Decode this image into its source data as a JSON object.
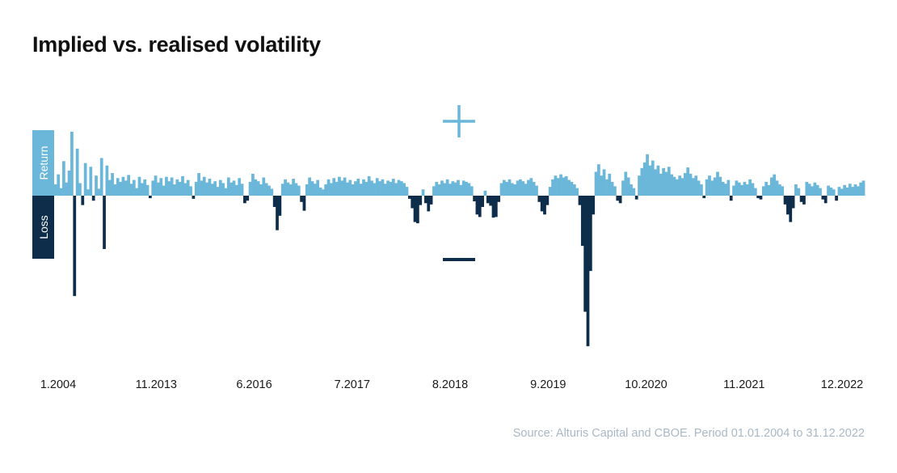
{
  "chart_data": {
    "type": "area",
    "title": "Implied vs. realised volatility",
    "xlabel": "",
    "ylabel": "",
    "side_labels": {
      "positive": "Return",
      "negative": "Loss"
    },
    "symbols": {
      "positive": "+",
      "negative": "−"
    },
    "x_tick_labels": [
      "1.2004",
      "11.2013",
      "6.2016",
      "7.2017",
      "8.2018",
      "9.2019",
      "10.2020",
      "11.2021",
      "12.2022"
    ],
    "series": [
      {
        "values": [
          1.8,
          3.4,
          1.2,
          5.5,
          2.1,
          4.0,
          10.2,
          -16.0,
          7.5,
          2.0,
          -1.5,
          5.2,
          1.0,
          4.6,
          -0.8,
          3.2,
          1.1,
          6.0,
          -8.5,
          4.8,
          2.5,
          3.6,
          1.8,
          2.8,
          2.2,
          3.0,
          2.4,
          3.3,
          1.9,
          2.5,
          1.2,
          3.0,
          2.0,
          2.6,
          1.7,
          -0.4,
          2.4,
          3.2,
          2.1,
          2.8,
          1.6,
          3.0,
          2.3,
          2.9,
          1.8,
          2.6,
          2.2,
          3.1,
          2.0,
          2.5,
          1.5,
          -0.5,
          2.2,
          3.6,
          2.4,
          3.0,
          2.1,
          2.7,
          1.9,
          2.3,
          1.4,
          2.5,
          2.0,
          1.2,
          2.9,
          2.1,
          2.4,
          1.7,
          2.8,
          1.9,
          -1.2,
          -0.8,
          2.2,
          3.5,
          2.6,
          2.3,
          1.8,
          2.9,
          2.0,
          1.6,
          1.1,
          -1.8,
          -5.5,
          -3.2,
          1.9,
          2.6,
          2.1,
          1.8,
          2.7,
          2.0,
          1.6,
          -1.0,
          -2.4,
          1.8,
          2.9,
          2.3,
          1.9,
          2.5,
          1.3,
          1.0,
          1.8,
          2.6,
          2.0,
          2.8,
          2.2,
          3.0,
          2.4,
          2.9,
          2.1,
          2.5,
          1.8,
          2.3,
          2.7,
          1.9,
          2.6,
          2.2,
          3.1,
          2.4,
          2.0,
          2.8,
          2.3,
          2.6,
          1.9,
          2.4,
          2.2,
          2.7,
          2.0,
          2.5,
          2.3,
          2.0,
          1.4,
          -0.5,
          -2.0,
          -4.2,
          -4.4,
          -1.5,
          1.0,
          -1.2,
          -2.5,
          -1.4,
          1.5,
          2.2,
          1.8,
          2.4,
          2.0,
          2.6,
          1.9,
          2.3,
          2.1,
          2.5,
          1.7,
          2.4,
          2.2,
          2.0,
          1.5,
          -0.9,
          -3.0,
          -3.4,
          -1.8,
          0.8,
          -1.2,
          -1.6,
          -3.5,
          -3.4,
          -1.0,
          2.0,
          2.5,
          2.2,
          2.6,
          2.0,
          1.8,
          2.4,
          2.6,
          2.3,
          1.9,
          2.5,
          2.8,
          2.2,
          1.6,
          -1.0,
          -2.5,
          -3.0,
          -1.5,
          1.4,
          2.6,
          3.2,
          2.8,
          3.4,
          2.9,
          3.1,
          2.5,
          2.2,
          1.8,
          1.2,
          -1.5,
          -8.0,
          -18.5,
          -24.0,
          -12.0,
          -3.0,
          3.8,
          5.0,
          3.2,
          4.2,
          2.6,
          3.5,
          2.2,
          1.5,
          -0.8,
          -1.2,
          2.4,
          3.8,
          2.9,
          1.8,
          1.2,
          -0.6,
          3.2,
          4.4,
          5.3,
          6.6,
          4.8,
          5.6,
          4.2,
          4.8,
          3.5,
          4.4,
          3.8,
          4.6,
          3.4,
          3.0,
          2.6,
          3.2,
          2.8,
          3.6,
          4.5,
          3.5,
          2.8,
          3.2,
          2.4,
          1.8,
          -0.4,
          2.6,
          3.2,
          2.4,
          2.9,
          3.8,
          3.0,
          2.2,
          1.9,
          2.5,
          -0.8,
          1.6,
          2.4,
          2.1,
          1.7,
          2.2,
          1.8,
          2.6,
          2.0,
          1.2,
          -0.4,
          -0.6,
          1.5,
          2.2,
          1.7,
          2.9,
          3.4,
          2.4,
          1.8,
          1.5,
          -1.4,
          -3.0,
          -4.2,
          -2.0,
          1.8,
          1.2,
          -1.0,
          -1.4,
          2.2,
          1.9,
          1.5,
          2.1,
          1.7,
          1.2,
          -0.6,
          -1.2,
          1.6,
          1.3,
          1.0,
          -0.8,
          1.4,
          1.1,
          1.7,
          1.3,
          1.9,
          1.4,
          1.8,
          1.5,
          2.1,
          2.4
        ]
      }
    ],
    "ylim": [
      -25,
      9.5
    ],
    "colors": {
      "positive": "#6bb7da",
      "negative": "#0d2d4b",
      "text": "#1a1a1a"
    }
  },
  "source_note": "Source: Alturis Capital and CBOE. Period 01.01.2004 to 31.12.2022"
}
